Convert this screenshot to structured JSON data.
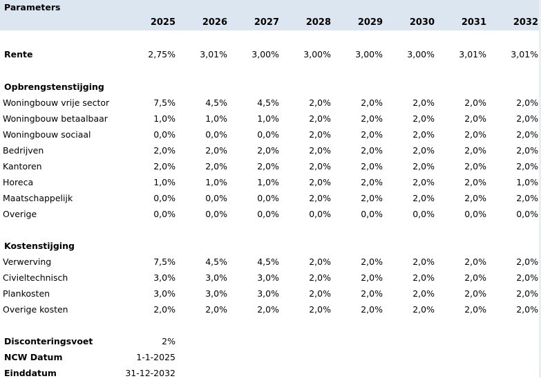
{
  "title": "Parameters",
  "years": [
    "2025",
    "2026",
    "2027",
    "2028",
    "2029",
    "2030",
    "2031",
    "2032"
  ],
  "rente": {
    "label": "Rente",
    "values": [
      "2,75%",
      "3,01%",
      "3,00%",
      "3,00%",
      "3,00%",
      "3,00%",
      "3,01%",
      "3,01%"
    ]
  },
  "opbrengst": {
    "heading": "Opbrengstenstijging",
    "rows": [
      {
        "label": "Woningbouw vrije sector",
        "values": [
          "7,5%",
          "4,5%",
          "4,5%",
          "2,0%",
          "2,0%",
          "2,0%",
          "2,0%",
          "2,0%"
        ]
      },
      {
        "label": "Woningbouw betaalbaar",
        "values": [
          "1,0%",
          "1,0%",
          "1,0%",
          "2,0%",
          "2,0%",
          "2,0%",
          "2,0%",
          "2,0%"
        ]
      },
      {
        "label": "Woningbouw sociaal",
        "values": [
          "0,0%",
          "0,0%",
          "0,0%",
          "2,0%",
          "2,0%",
          "2,0%",
          "2,0%",
          "2,0%"
        ]
      },
      {
        "label": "Bedrijven",
        "values": [
          "2,0%",
          "2,0%",
          "2,0%",
          "2,0%",
          "2,0%",
          "2,0%",
          "2,0%",
          "2,0%"
        ]
      },
      {
        "label": "Kantoren",
        "values": [
          "2,0%",
          "2,0%",
          "2,0%",
          "2,0%",
          "2,0%",
          "2,0%",
          "2,0%",
          "2,0%"
        ]
      },
      {
        "label": "Horeca",
        "values": [
          "1,0%",
          "1,0%",
          "1,0%",
          "2,0%",
          "2,0%",
          "2,0%",
          "2,0%",
          "1,0%"
        ]
      },
      {
        "label": "Maatschappelijk",
        "values": [
          "0,0%",
          "0,0%",
          "0,0%",
          "2,0%",
          "2,0%",
          "2,0%",
          "2,0%",
          "2,0%"
        ]
      },
      {
        "label": "Overige",
        "values": [
          "0,0%",
          "0,0%",
          "0,0%",
          "0,0%",
          "0,0%",
          "0,0%",
          "0,0%",
          "0,0%"
        ]
      }
    ]
  },
  "kosten": {
    "heading": "Kostenstijging",
    "rows": [
      {
        "label": "Verwerving",
        "values": [
          "7,5%",
          "4,5%",
          "4,5%",
          "2,0%",
          "2,0%",
          "2,0%",
          "2,0%",
          "2,0%"
        ]
      },
      {
        "label": "Civieltechnisch",
        "values": [
          "3,0%",
          "3,0%",
          "3,0%",
          "2,0%",
          "2,0%",
          "2,0%",
          "2,0%",
          "2,0%"
        ]
      },
      {
        "label": "Plankosten",
        "values": [
          "3,0%",
          "3,0%",
          "3,0%",
          "2,0%",
          "2,0%",
          "2,0%",
          "2,0%",
          "2,0%"
        ]
      },
      {
        "label": "Overige kosten",
        "values": [
          "2,0%",
          "2,0%",
          "2,0%",
          "2,0%",
          "2,0%",
          "2,0%",
          "2,0%",
          "2,0%"
        ]
      }
    ]
  },
  "footer": [
    {
      "label": "Disconteringsvoet",
      "value": "2%"
    },
    {
      "label": "NCW Datum",
      "value": "1-1-2025"
    },
    {
      "label": "Einddatum",
      "value": "31-12-2032"
    }
  ],
  "colors": {
    "header_band": "#dce6f1"
  }
}
